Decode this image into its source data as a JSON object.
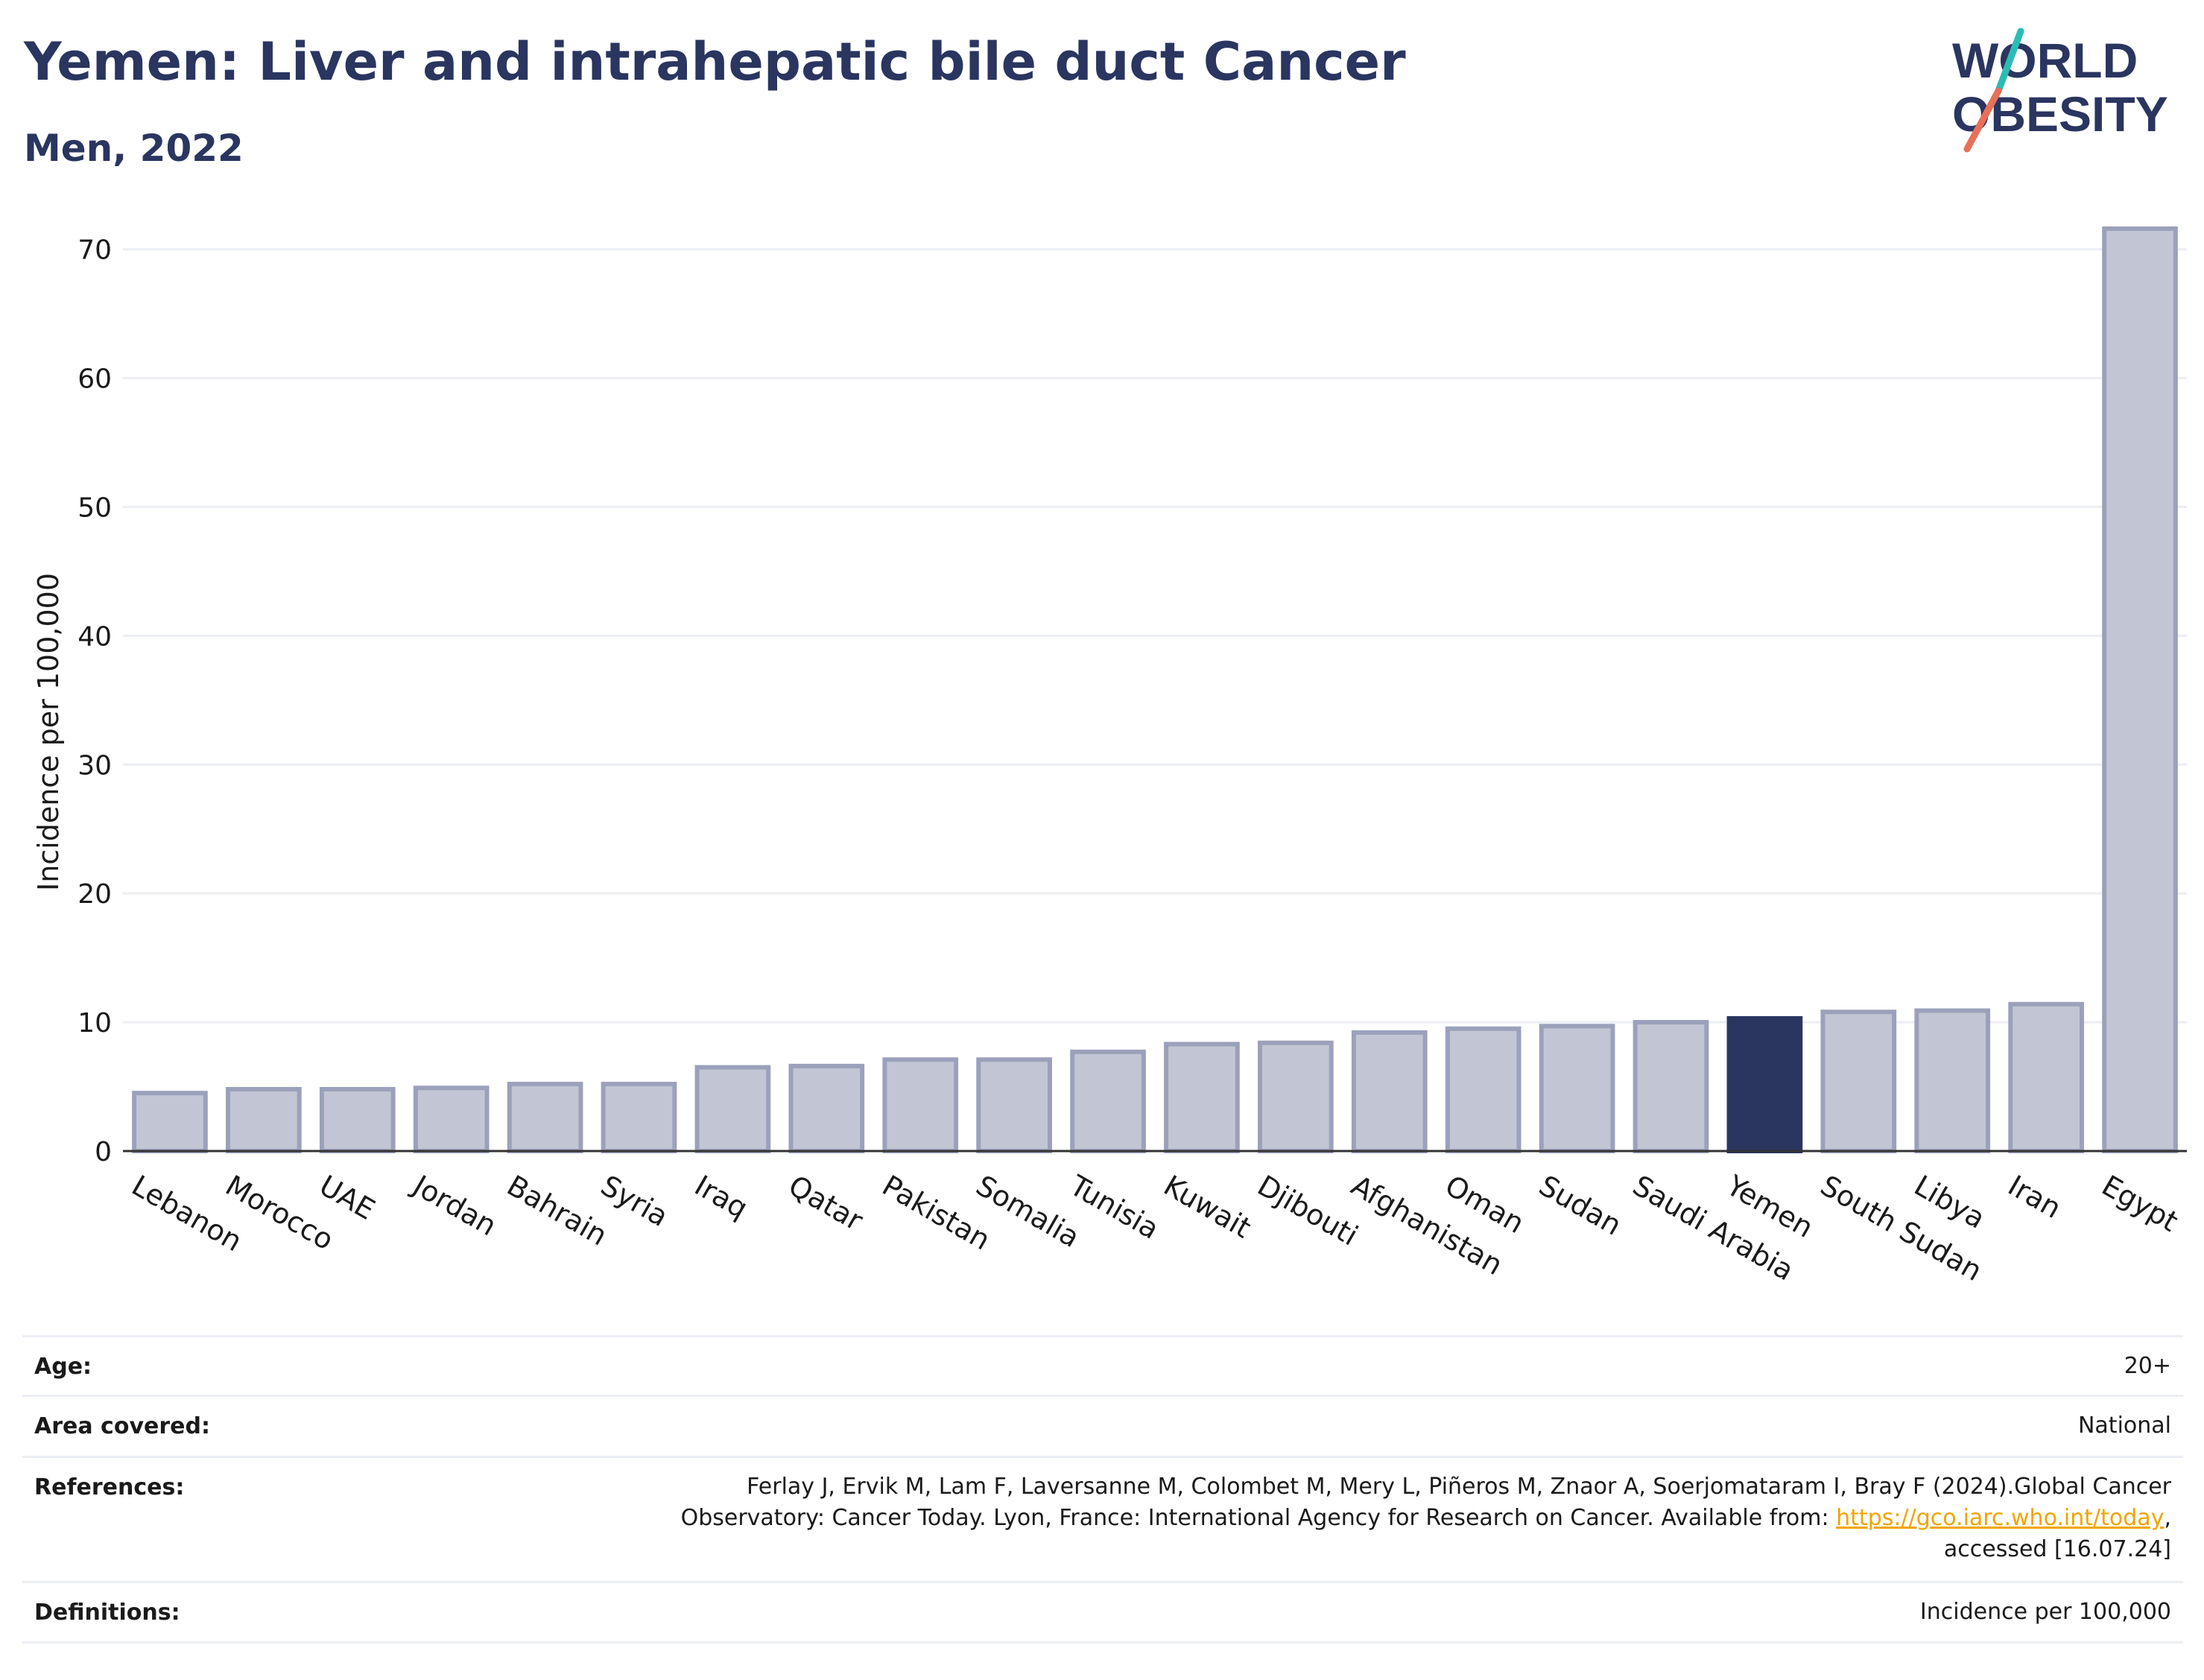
{
  "header": {
    "title": "Yemen: Liver and intrahepatic bile duct Cancer",
    "subtitle": "Men, 2022"
  },
  "logo": {
    "line1": "WORLD",
    "line2": "OBESITY",
    "colors": {
      "text": "#2a3560",
      "slash_top": "#2bbcb3",
      "slash_bottom": "#e8705a"
    }
  },
  "chart_data": {
    "type": "bar",
    "ylabel": "Incidence per 100,000",
    "xlabel": "",
    "ylim": [
      0,
      72
    ],
    "yticks": [
      0,
      10,
      20,
      30,
      40,
      50,
      60,
      70
    ],
    "grid": true,
    "highlight": "Yemen",
    "colors": {
      "bar": "#c2c6d4",
      "bar_edge": "#9ba1bb",
      "highlight": "#2a3560",
      "grid": "#eceef4",
      "axis": "#333333"
    },
    "categories": [
      "Lebanon",
      "Morocco",
      "UAE",
      "Jordan",
      "Bahrain",
      "Syria",
      "Iraq",
      "Qatar",
      "Pakistan",
      "Somalia",
      "Tunisia",
      "Kuwait",
      "Djibouti",
      "Afghanistan",
      "Oman",
      "Sudan",
      "Saudi Arabia",
      "Yemen",
      "South Sudan",
      "Libya",
      "Iran",
      "Egypt"
    ],
    "values": [
      4.5,
      4.8,
      4.8,
      4.9,
      5.2,
      5.2,
      6.5,
      6.6,
      7.1,
      7.1,
      7.7,
      8.3,
      8.4,
      9.2,
      9.5,
      9.7,
      10.0,
      10.3,
      10.8,
      10.9,
      11.4,
      71.6
    ]
  },
  "meta": {
    "age_label": "Age:",
    "age_value": "20+",
    "area_label": "Area covered:",
    "area_value": "National",
    "references_label": "References:",
    "references_line1": "Ferlay J, Ervik M, Lam F, Laversanne M, Colombet M, Mery L, Piñeros M, Znaor A, Soerjomataram I, Bray F (2024).Global Cancer",
    "references_line2_pre": "Observatory: Cancer Today. Lyon, France: International Agency for Research on Cancer. Available from: ",
    "references_link": "https://gco.iarc.who.int/today",
    "references_line2_post": ",",
    "references_line3": "accessed [16.07.24]",
    "definitions_label": "Definitions:",
    "definitions_value": "Incidence per 100,000"
  }
}
